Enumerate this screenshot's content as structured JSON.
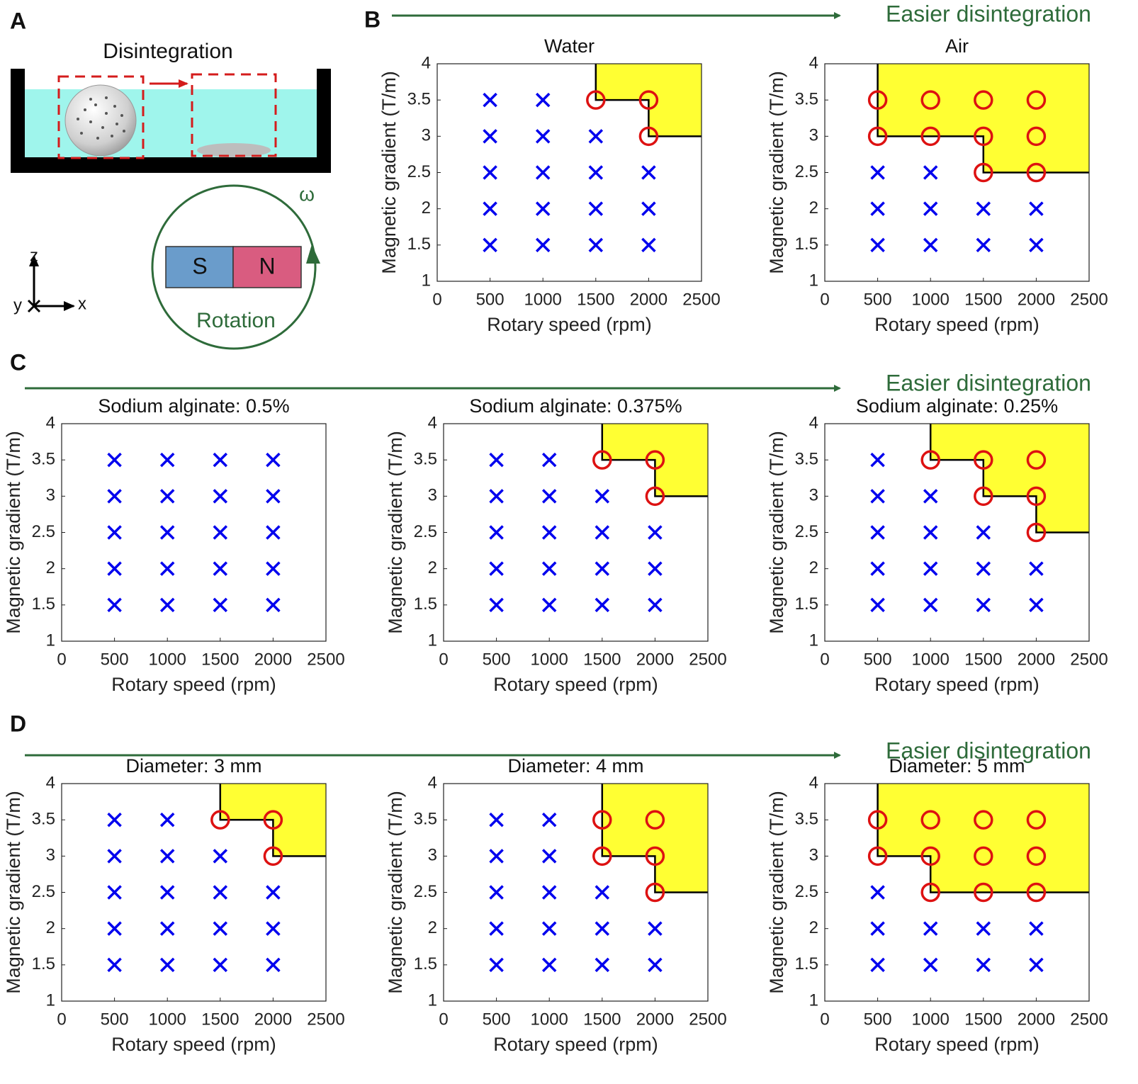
{
  "panels": [
    "A",
    "B",
    "C",
    "D"
  ],
  "diagram": {
    "title": "Disintegration",
    "omega": "ω",
    "south": "S",
    "north": "N",
    "rotation": "Rotation",
    "axes": [
      "z",
      "y",
      "x"
    ]
  },
  "annotations": [
    "Easier disintegration",
    "Easier disintegration",
    "Easier disintegration"
  ],
  "chart_data": [
    {
      "type": "scatter",
      "title": "Water",
      "xlabel": "Rotary speed (rpm)",
      "ylabel": "Magnetic gradient (T/m)",
      "xlim": [
        0,
        2500
      ],
      "ylim": [
        1,
        4
      ],
      "xticks": [
        0,
        500,
        1000,
        1500,
        2000,
        2500
      ],
      "yticks": [
        1,
        1.5,
        2,
        2.5,
        3,
        3.5,
        4
      ],
      "region_color": "#ffff33",
      "series": [
        {
          "marker": "x",
          "color": "#0000ee",
          "x": [
            500,
            1000,
            1500,
            2000,
            500,
            1000,
            1500,
            2000,
            500,
            1000,
            1500,
            2000,
            500,
            1000,
            1500,
            500,
            1000
          ],
          "values": [
            1.5,
            1.5,
            1.5,
            1.5,
            2,
            2,
            2,
            2,
            2.5,
            2.5,
            2.5,
            2.5,
            3,
            3,
            3,
            3.5,
            3.5
          ]
        },
        {
          "marker": "o",
          "color": "#dd1111",
          "x": [
            1500,
            2000,
            2000
          ],
          "values": [
            3.5,
            3.5,
            3
          ]
        }
      ],
      "boundary": {
        "x": [
          1500,
          1500,
          2000,
          2000,
          2500
        ],
        "y": [
          4,
          3.5,
          3.5,
          3,
          3
        ]
      }
    },
    {
      "type": "scatter",
      "title": "Air",
      "xlabel": "Rotary speed (rpm)",
      "ylabel": "Magnetic gradient (T/m)",
      "xlim": [
        0,
        2500
      ],
      "ylim": [
        1,
        4
      ],
      "xticks": [
        0,
        500,
        1000,
        1500,
        2000,
        2500
      ],
      "yticks": [
        1,
        1.5,
        2,
        2.5,
        3,
        3.5,
        4
      ],
      "region_color": "#ffff33",
      "series": [
        {
          "marker": "x",
          "color": "#0000ee",
          "x": [
            500,
            1000,
            1500,
            2000,
            500,
            1000,
            1500,
            2000,
            500,
            1000
          ],
          "values": [
            1.5,
            1.5,
            1.5,
            1.5,
            2,
            2,
            2,
            2,
            2.5,
            2.5
          ]
        },
        {
          "marker": "o",
          "color": "#dd1111",
          "x": [
            500,
            1000,
            1500,
            2000,
            500,
            1000,
            1500,
            2000,
            1500,
            2000
          ],
          "values": [
            3.5,
            3.5,
            3.5,
            3.5,
            3,
            3,
            3,
            3,
            2.5,
            2.5
          ]
        }
      ],
      "boundary": {
        "x": [
          500,
          500,
          1500,
          1500,
          2500
        ],
        "y": [
          4,
          3,
          3,
          2.5,
          2.5
        ]
      }
    },
    {
      "type": "scatter",
      "title": "Sodium alginate: 0.5%",
      "xlabel": "Rotary speed (rpm)",
      "ylabel": "Magnetic gradient (T/m)",
      "xlim": [
        0,
        2500
      ],
      "ylim": [
        1,
        4
      ],
      "xticks": [
        0,
        500,
        1000,
        1500,
        2000,
        2500
      ],
      "yticks": [
        1,
        1.5,
        2,
        2.5,
        3,
        3.5,
        4
      ],
      "series": [
        {
          "marker": "x",
          "color": "#0000ee",
          "x": [
            500,
            1000,
            1500,
            2000,
            500,
            1000,
            1500,
            2000,
            500,
            1000,
            1500,
            2000,
            500,
            1000,
            1500,
            2000,
            500,
            1000,
            1500,
            2000
          ],
          "values": [
            1.5,
            1.5,
            1.5,
            1.5,
            2,
            2,
            2,
            2,
            2.5,
            2.5,
            2.5,
            2.5,
            3,
            3,
            3,
            3,
            3.5,
            3.5,
            3.5,
            3.5
          ]
        }
      ]
    },
    {
      "type": "scatter",
      "title": "Sodium alginate: 0.375%",
      "xlabel": "Rotary speed (rpm)",
      "ylabel": "Magnetic gradient (T/m)",
      "xlim": [
        0,
        2500
      ],
      "ylim": [
        1,
        4
      ],
      "xticks": [
        0,
        500,
        1000,
        1500,
        2000,
        2500
      ],
      "yticks": [
        1,
        1.5,
        2,
        2.5,
        3,
        3.5,
        4
      ],
      "region_color": "#ffff33",
      "series": [
        {
          "marker": "x",
          "color": "#0000ee",
          "x": [
            500,
            1000,
            1500,
            2000,
            500,
            1000,
            1500,
            2000,
            500,
            1000,
            1500,
            2000,
            500,
            1000,
            1500,
            500,
            1000
          ],
          "values": [
            1.5,
            1.5,
            1.5,
            1.5,
            2,
            2,
            2,
            2,
            2.5,
            2.5,
            2.5,
            2.5,
            3,
            3,
            3,
            3.5,
            3.5
          ]
        },
        {
          "marker": "o",
          "color": "#dd1111",
          "x": [
            1500,
            2000,
            2000
          ],
          "values": [
            3.5,
            3.5,
            3
          ]
        }
      ],
      "boundary": {
        "x": [
          1500,
          1500,
          2000,
          2000,
          2500
        ],
        "y": [
          4,
          3.5,
          3.5,
          3,
          3
        ]
      }
    },
    {
      "type": "scatter",
      "title": "Sodium alginate: 0.25%",
      "xlabel": "Rotary speed (rpm)",
      "ylabel": "Magnetic gradient (T/m)",
      "xlim": [
        0,
        2500
      ],
      "ylim": [
        1,
        4
      ],
      "xticks": [
        0,
        500,
        1000,
        1500,
        2000,
        2500
      ],
      "yticks": [
        1,
        1.5,
        2,
        2.5,
        3,
        3.5,
        4
      ],
      "region_color": "#ffff33",
      "series": [
        {
          "marker": "x",
          "color": "#0000ee",
          "x": [
            500,
            1000,
            1500,
            2000,
            500,
            1000,
            1500,
            2000,
            500,
            1000,
            1500,
            500,
            1000,
            500
          ],
          "values": [
            1.5,
            1.5,
            1.5,
            1.5,
            2,
            2,
            2,
            2,
            2.5,
            2.5,
            2.5,
            3,
            3,
            3.5
          ]
        },
        {
          "marker": "o",
          "color": "#dd1111",
          "x": [
            1000,
            1500,
            2000,
            1500,
            2000,
            2000
          ],
          "values": [
            3.5,
            3.5,
            3.5,
            3,
            3,
            2.5
          ]
        }
      ],
      "boundary": {
        "x": [
          1000,
          1000,
          1500,
          1500,
          2000,
          2000,
          2500
        ],
        "y": [
          4,
          3.5,
          3.5,
          3,
          3,
          2.5,
          2.5
        ]
      }
    },
    {
      "type": "scatter",
      "title": "Diameter: 3 mm",
      "xlabel": "Rotary speed (rpm)",
      "ylabel": "Magnetic gradient (T/m)",
      "xlim": [
        0,
        2500
      ],
      "ylim": [
        1,
        4
      ],
      "xticks": [
        0,
        500,
        1000,
        1500,
        2000,
        2500
      ],
      "yticks": [
        1,
        1.5,
        2,
        2.5,
        3,
        3.5,
        4
      ],
      "region_color": "#ffff33",
      "series": [
        {
          "marker": "x",
          "color": "#0000ee",
          "x": [
            500,
            1000,
            1500,
            2000,
            500,
            1000,
            1500,
            2000,
            500,
            1000,
            1500,
            2000,
            500,
            1000,
            1500,
            500,
            1000
          ],
          "values": [
            1.5,
            1.5,
            1.5,
            1.5,
            2,
            2,
            2,
            2,
            2.5,
            2.5,
            2.5,
            2.5,
            3,
            3,
            3,
            3.5,
            3.5
          ]
        },
        {
          "marker": "o",
          "color": "#dd1111",
          "x": [
            1500,
            2000,
            2000
          ],
          "values": [
            3.5,
            3.5,
            3
          ]
        }
      ],
      "boundary": {
        "x": [
          1500,
          1500,
          2000,
          2000,
          2500
        ],
        "y": [
          4,
          3.5,
          3.5,
          3,
          3
        ]
      }
    },
    {
      "type": "scatter",
      "title": "Diameter: 4 mm",
      "xlabel": "Rotary speed (rpm)",
      "ylabel": "Magnetic gradient (T/m)",
      "xlim": [
        0,
        2500
      ],
      "ylim": [
        1,
        4
      ],
      "xticks": [
        0,
        500,
        1000,
        1500,
        2000,
        2500
      ],
      "yticks": [
        1,
        1.5,
        2,
        2.5,
        3,
        3.5,
        4
      ],
      "region_color": "#ffff33",
      "series": [
        {
          "marker": "x",
          "color": "#0000ee",
          "x": [
            500,
            1000,
            1500,
            2000,
            500,
            1000,
            1500,
            2000,
            500,
            1000,
            1500,
            500,
            1000,
            500,
            1000
          ],
          "values": [
            1.5,
            1.5,
            1.5,
            1.5,
            2,
            2,
            2,
            2,
            2.5,
            2.5,
            2.5,
            3,
            3,
            3.5,
            3.5
          ]
        },
        {
          "marker": "o",
          "color": "#dd1111",
          "x": [
            1500,
            2000,
            1500,
            2000,
            2000
          ],
          "values": [
            3.5,
            3.5,
            3,
            3,
            2.5
          ]
        }
      ],
      "boundary": {
        "x": [
          1500,
          1500,
          2000,
          2000,
          2500
        ],
        "y": [
          4,
          3,
          3,
          2.5,
          2.5
        ]
      }
    },
    {
      "type": "scatter",
      "title": "Diameter: 5 mm",
      "xlabel": "Rotary speed (rpm)",
      "ylabel": "Magnetic gradient (T/m)",
      "xlim": [
        0,
        2500
      ],
      "ylim": [
        1,
        4
      ],
      "xticks": [
        0,
        500,
        1000,
        1500,
        2000,
        2500
      ],
      "yticks": [
        1,
        1.5,
        2,
        2.5,
        3,
        3.5,
        4
      ],
      "region_color": "#ffff33",
      "series": [
        {
          "marker": "x",
          "color": "#0000ee",
          "x": [
            500,
            1000,
            1500,
            2000,
            500,
            1000,
            1500,
            2000,
            500
          ],
          "values": [
            1.5,
            1.5,
            1.5,
            1.5,
            2,
            2,
            2,
            2,
            2.5
          ]
        },
        {
          "marker": "o",
          "color": "#dd1111",
          "x": [
            500,
            1000,
            1500,
            2000,
            500,
            1000,
            1500,
            2000,
            1000,
            1500,
            2000
          ],
          "values": [
            3.5,
            3.5,
            3.5,
            3.5,
            3,
            3,
            3,
            3,
            2.5,
            2.5,
            2.5
          ]
        }
      ],
      "boundary": {
        "x": [
          500,
          500,
          1000,
          1000,
          2500
        ],
        "y": [
          4,
          3,
          3,
          2.5,
          2.5
        ]
      }
    }
  ]
}
